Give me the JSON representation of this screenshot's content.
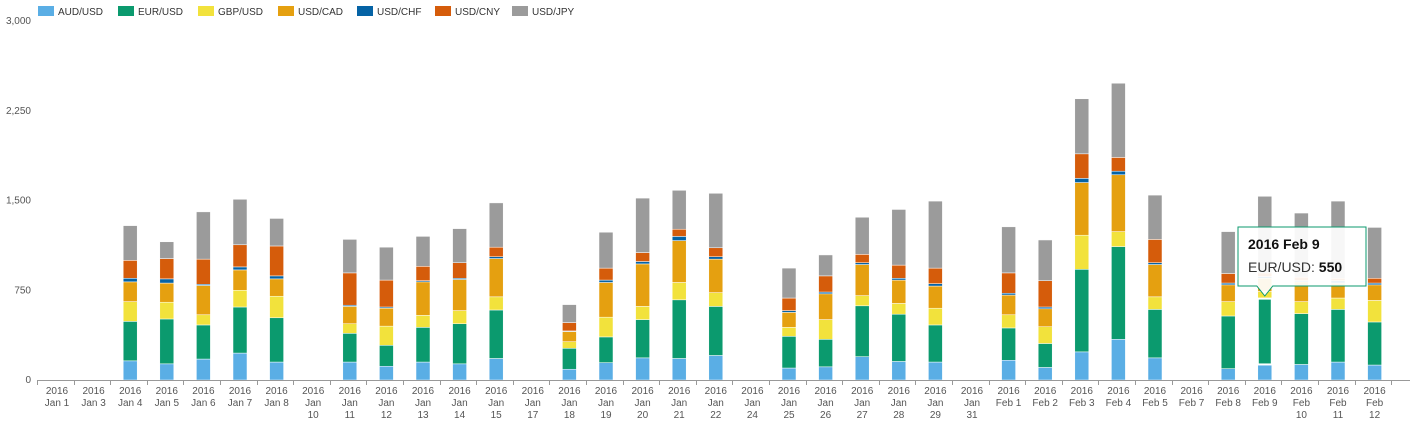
{
  "chart_data": {
    "type": "bar",
    "stacked": true,
    "ylim": [
      0,
      3000
    ],
    "yticks": [
      0,
      750,
      1500,
      2250,
      3000
    ],
    "ytick_labels": [
      "0",
      "750",
      "1,500",
      "2,250",
      "3,000"
    ],
    "grid": false,
    "legend_position": "top-left",
    "categories": [
      [
        "2016",
        "Jan 1"
      ],
      [
        "2016",
        "Jan 3"
      ],
      [
        "2016",
        "Jan 4"
      ],
      [
        "2016",
        "Jan 5"
      ],
      [
        "2016",
        "Jan 6"
      ],
      [
        "2016",
        "Jan 7"
      ],
      [
        "2016",
        "Jan 8"
      ],
      [
        "2016",
        "Jan",
        "10"
      ],
      [
        "2016",
        "Jan",
        "11"
      ],
      [
        "2016",
        "Jan",
        "12"
      ],
      [
        "2016",
        "Jan",
        "13"
      ],
      [
        "2016",
        "Jan",
        "14"
      ],
      [
        "2016",
        "Jan",
        "15"
      ],
      [
        "2016",
        "Jan",
        "17"
      ],
      [
        "2016",
        "Jan",
        "18"
      ],
      [
        "2016",
        "Jan",
        "19"
      ],
      [
        "2016",
        "Jan",
        "20"
      ],
      [
        "2016",
        "Jan",
        "21"
      ],
      [
        "2016",
        "Jan",
        "22"
      ],
      [
        "2016",
        "Jan",
        "24"
      ],
      [
        "2016",
        "Jan",
        "25"
      ],
      [
        "2016",
        "Jan",
        "26"
      ],
      [
        "2016",
        "Jan",
        "27"
      ],
      [
        "2016",
        "Jan",
        "28"
      ],
      [
        "2016",
        "Jan",
        "29"
      ],
      [
        "2016",
        "Jan",
        "31"
      ],
      [
        "2016",
        "Feb 1"
      ],
      [
        "2016",
        "Feb 2"
      ],
      [
        "2016",
        "Feb 3"
      ],
      [
        "2016",
        "Feb 4"
      ],
      [
        "2016",
        "Feb 5"
      ],
      [
        "2016",
        "Feb 7"
      ],
      [
        "2016",
        "Feb 8"
      ],
      [
        "2016",
        "Feb 9"
      ],
      [
        "2016",
        "Feb",
        "10"
      ],
      [
        "2016",
        "Feb",
        "11"
      ],
      [
        "2016",
        "Feb",
        "12"
      ]
    ],
    "series": [
      {
        "name": "AUD/USD",
        "color": "#5aaee5",
        "values": [
          3,
          0,
          160,
          135,
          175,
          225,
          150,
          3,
          150,
          115,
          150,
          135,
          180,
          0,
          90,
          145,
          185,
          180,
          205,
          0,
          100,
          110,
          195,
          155,
          150,
          0,
          165,
          105,
          235,
          340,
          185,
          0,
          95,
          130,
          130,
          150,
          125
        ]
      },
      {
        "name": "EUR/USD",
        "color": "#0b9a6e",
        "values": [
          0,
          0,
          330,
          375,
          285,
          385,
          370,
          0,
          240,
          175,
          290,
          335,
          405,
          0,
          175,
          215,
          320,
          490,
          410,
          0,
          265,
          230,
          425,
          395,
          310,
          0,
          270,
          200,
          690,
          775,
          405,
          0,
          440,
          550,
          425,
          440,
          360
        ]
      },
      {
        "name": "GBP/USD",
        "color": "#f2e23c",
        "values": [
          0,
          0,
          165,
          140,
          85,
          140,
          180,
          0,
          80,
          160,
          100,
          110,
          110,
          0,
          55,
          165,
          110,
          145,
          115,
          0,
          75,
          165,
          85,
          90,
          140,
          0,
          110,
          140,
          285,
          125,
          105,
          0,
          120,
          60,
          100,
          95,
          180
        ]
      },
      {
        "name": "USD/CAD",
        "color": "#e5a010",
        "values": [
          0,
          0,
          165,
          160,
          245,
          170,
          145,
          0,
          145,
          150,
          280,
          260,
          320,
          0,
          85,
          290,
          355,
          350,
          280,
          0,
          125,
          215,
          260,
          195,
          185,
          0,
          165,
          150,
          440,
          475,
          270,
          0,
          140,
          110,
          165,
          125,
          130
        ]
      },
      {
        "name": "USD/CHF",
        "color": "#0563a5",
        "values": [
          0,
          0,
          30,
          35,
          10,
          25,
          25,
          0,
          10,
          10,
          10,
          10,
          15,
          0,
          5,
          20,
          20,
          35,
          20,
          0,
          15,
          15,
          15,
          15,
          20,
          0,
          15,
          15,
          35,
          30,
          15,
          0,
          15,
          15,
          10,
          20,
          15
        ]
      },
      {
        "name": "USD/CNY",
        "color": "#d55c0b",
        "values": [
          0,
          0,
          150,
          170,
          210,
          185,
          250,
          0,
          270,
          225,
          120,
          130,
          80,
          0,
          70,
          100,
          75,
          60,
          75,
          0,
          105,
          135,
          70,
          110,
          130,
          0,
          170,
          220,
          205,
          115,
          195,
          0,
          80,
          30,
          30,
          20,
          40
        ]
      },
      {
        "name": "USD/JPY",
        "color": "#9b9b9b",
        "values": [
          0,
          0,
          290,
          140,
          395,
          380,
          230,
          0,
          280,
          275,
          250,
          285,
          370,
          0,
          150,
          300,
          455,
          325,
          455,
          0,
          250,
          175,
          310,
          465,
          560,
          0,
          385,
          340,
          460,
          620,
          370,
          0,
          350,
          640,
          535,
          645,
          425
        ]
      }
    ],
    "tooltip": {
      "category_index": 33,
      "title": "2016 Feb 9",
      "series": "EUR/USD",
      "value": "550"
    }
  }
}
